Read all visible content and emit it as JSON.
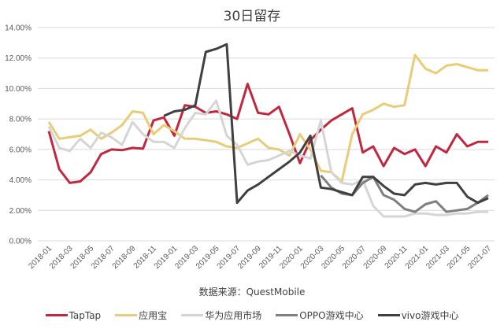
{
  "chart_data": {
    "type": "line",
    "title": "30日留存",
    "xlabel": "",
    "ylabel": "",
    "ylim": [
      0,
      14
    ],
    "yticks": [
      "0.00%",
      "2.00%",
      "4.00%",
      "6.00%",
      "8.00%",
      "10.00%",
      "12.00%",
      "14.00%"
    ],
    "grid": true,
    "legend_position": "bottom",
    "annotation": "数据来源：QuestMobile",
    "x": [
      "2018-01",
      "2018-02",
      "2018-03",
      "2018-04",
      "2018-05",
      "2018-06",
      "2018-07",
      "2018-08",
      "2018-09",
      "2018-10",
      "2018-11",
      "2018-12",
      "2019-01",
      "2019-02",
      "2019-03",
      "2019-04",
      "2019-05",
      "2019-06",
      "2019-07",
      "2019-08",
      "2019-09",
      "2019-10",
      "2019-11",
      "2019-12",
      "2020-01",
      "2020-02",
      "2020-03",
      "2020-04",
      "2020-05",
      "2020-06",
      "2020-07",
      "2020-08",
      "2020-09",
      "2020-10",
      "2020-11",
      "2020-12",
      "2021-01",
      "2021-02",
      "2021-03",
      "2021-04",
      "2021-05",
      "2021-06",
      "2021-07"
    ],
    "xtick_labels": [
      "2018-01",
      "2018-03",
      "2018-05",
      "2018-07",
      "2018-09",
      "2018-11",
      "2019-01",
      "2019-03",
      "2019-05",
      "2019-07",
      "2019-09",
      "2019-11",
      "2020-01",
      "2020-03",
      "2020-05",
      "2020-07",
      "2020-09",
      "2020-11",
      "2021-01",
      "2021-03",
      "2021-05",
      "2021-07"
    ],
    "series": [
      {
        "name": "TapTap",
        "color": "#C0283F",
        "values": [
          7.2,
          4.7,
          3.8,
          3.9,
          4.5,
          5.7,
          6.0,
          5.95,
          6.1,
          6.05,
          7.9,
          8.1,
          6.9,
          8.9,
          8.8,
          8.4,
          8.5,
          8.3,
          8.0,
          10.3,
          8.4,
          8.3,
          8.8,
          7.0,
          5.1,
          6.6,
          7.3,
          7.9,
          8.3,
          8.7,
          5.8,
          6.2,
          4.9,
          6.1,
          5.7,
          6.0,
          4.9,
          6.2,
          5.8,
          7.0,
          6.2,
          6.5,
          6.5
        ]
      },
      {
        "name": "应用宝",
        "color": "#E8CC78",
        "values": [
          7.8,
          6.7,
          6.8,
          6.9,
          7.3,
          6.7,
          7.1,
          7.6,
          8.5,
          8.4,
          7.0,
          7.6,
          7.2,
          6.7,
          6.7,
          6.6,
          6.5,
          6.2,
          6.1,
          6.4,
          6.7,
          6.1,
          6.0,
          5.6,
          7.0,
          6.0,
          4.6,
          4.5,
          3.9,
          7.0,
          8.3,
          8.6,
          9.0,
          8.8,
          8.9,
          12.2,
          11.3,
          11.0,
          11.5,
          11.6,
          11.4,
          11.2,
          11.2
        ]
      },
      {
        "name": "华为应用市场",
        "color": "#D5D5D5",
        "values": [
          7.5,
          6.1,
          5.9,
          6.7,
          6.1,
          7.1,
          6.8,
          6.3,
          7.8,
          7.0,
          6.5,
          6.5,
          6.1,
          7.4,
          8.4,
          8.3,
          9.2,
          6.9,
          6.3,
          5.0,
          5.2,
          5.3,
          5.6,
          5.9,
          5.6,
          5.4,
          7.9,
          4.5,
          3.8,
          3.7,
          4.0,
          2.3,
          1.6,
          1.6,
          1.6,
          1.8,
          1.8,
          1.7,
          1.7,
          1.8,
          1.8,
          1.9,
          1.9
        ]
      },
      {
        "name": "OPPO游戏中心",
        "color": "#7F7F7F",
        "values": [
          null,
          null,
          null,
          null,
          null,
          null,
          null,
          null,
          null,
          null,
          null,
          null,
          null,
          null,
          null,
          null,
          null,
          null,
          null,
          null,
          null,
          null,
          null,
          null,
          null,
          null,
          4.3,
          3.5,
          3.1,
          3.0,
          3.8,
          4.2,
          3.0,
          2.7,
          2.1,
          1.9,
          2.4,
          2.6,
          1.9,
          2.0,
          2.1,
          2.5,
          3.0
        ]
      },
      {
        "name": "vivo游戏中心",
        "color": "#404040",
        "values": [
          null,
          null,
          null,
          null,
          null,
          null,
          null,
          null,
          null,
          null,
          null,
          8.2,
          8.5,
          8.6,
          8.9,
          12.4,
          12.6,
          12.9,
          2.5,
          3.3,
          3.7,
          4.2,
          4.7,
          5.2,
          5.8,
          6.9,
          3.5,
          3.4,
          3.2,
          3.0,
          4.2,
          4.2,
          3.6,
          3.1,
          3.0,
          3.7,
          3.8,
          3.7,
          3.8,
          3.8,
          2.9,
          2.5,
          2.8
        ]
      }
    ]
  }
}
